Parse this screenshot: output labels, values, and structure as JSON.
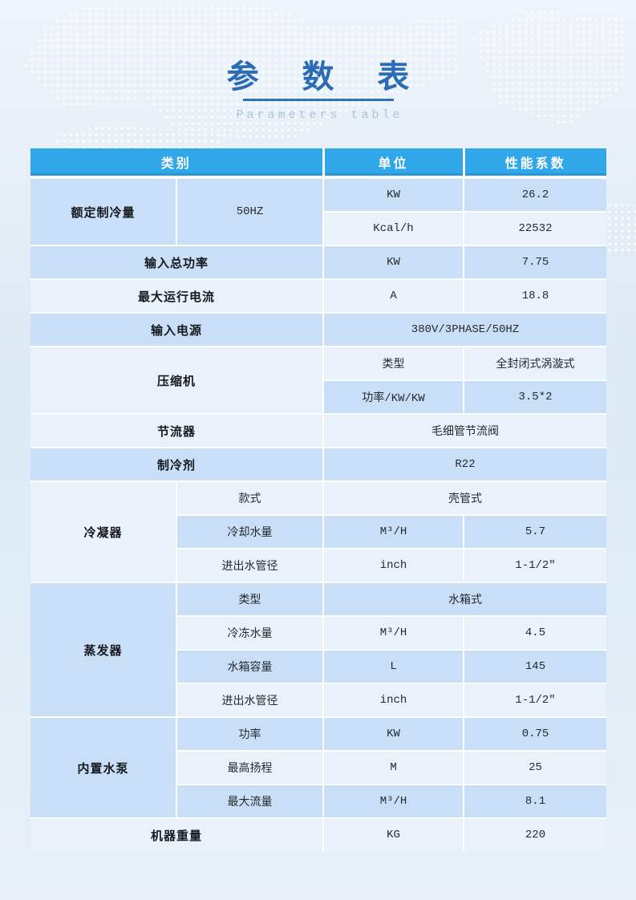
{
  "page": {
    "title": "参 数 表",
    "subtitle": "Parameters table"
  },
  "colors": {
    "title_color": "#2b6cb4",
    "title_underline": "#2d73b8",
    "subtitle_color": "#a9c3dd",
    "header_bg": "#2fa7e8",
    "header_text": "#ffffff",
    "row_medium": "#c9dff7",
    "row_light": "#e9f1fb"
  },
  "table": {
    "header": [
      {
        "label": "类别",
        "span": 2
      },
      {
        "label": "单位",
        "span": 1
      },
      {
        "label": "性能系数",
        "span": 1
      }
    ],
    "rows": [
      {
        "shade": "m",
        "cells": [
          {
            "text": "额定制冷量",
            "type": "row-label",
            "bold": true,
            "rowspan": 2
          },
          {
            "text": "50HZ",
            "type": "sub-label",
            "rowspan": 2
          },
          {
            "text": "KW",
            "type": "unit-cell"
          },
          {
            "text": "26.2",
            "type": "value-cell"
          }
        ]
      },
      {
        "shade": "l",
        "cells": [
          {
            "text": "Kcal/h",
            "type": "unit-cell"
          },
          {
            "text": "22532",
            "type": "value-cell"
          }
        ]
      },
      {
        "shade": "m",
        "cells": [
          {
            "text": "输入总功率",
            "type": "row-label",
            "bold": true,
            "colspan": 2
          },
          {
            "text": "KW",
            "type": "unit-cell"
          },
          {
            "text": "7.75",
            "type": "value-cell"
          }
        ]
      },
      {
        "shade": "l",
        "cells": [
          {
            "text": "最大运行电流",
            "type": "row-label",
            "bold": true,
            "colspan": 2
          },
          {
            "text": "A",
            "type": "unit-cell"
          },
          {
            "text": "18.8",
            "type": "value-cell"
          }
        ]
      },
      {
        "shade": "m",
        "cells": [
          {
            "text": "输入电源",
            "type": "row-label",
            "bold": true,
            "colspan": 2
          },
          {
            "text": "380V/3PHASE/50HZ",
            "type": "value-cell",
            "colspan": 2
          }
        ]
      },
      {
        "shade": "l",
        "cells": [
          {
            "text": "压缩机",
            "type": "row-label",
            "bold": true,
            "colspan": 2,
            "rowspan": 2
          },
          {
            "text": "类型",
            "type": "sub-label"
          },
          {
            "text": "全封闭式涡漩式",
            "type": "value-cell"
          }
        ]
      },
      {
        "shade": "m",
        "cells": [
          {
            "text": "功率/KW/KW",
            "type": "sub-label"
          },
          {
            "text": "3.5*2",
            "type": "value-cell"
          }
        ]
      },
      {
        "shade": "l",
        "cells": [
          {
            "text": "节流器",
            "type": "row-label",
            "bold": true,
            "colspan": 2
          },
          {
            "text": "毛细管节流阀",
            "type": "value-cell",
            "colspan": 2
          }
        ]
      },
      {
        "shade": "m",
        "cells": [
          {
            "text": "制冷剂",
            "type": "row-label",
            "bold": true,
            "colspan": 2
          },
          {
            "text": "R22",
            "type": "value-cell",
            "colspan": 2
          }
        ]
      },
      {
        "shade": "l",
        "cells": [
          {
            "text": "冷凝器",
            "type": "row-label",
            "bold": true,
            "rowspan": 3
          },
          {
            "text": "款式",
            "type": "sub-label"
          },
          {
            "text": "壳管式",
            "type": "value-cell",
            "colspan": 2
          }
        ]
      },
      {
        "shade": "m",
        "cells": [
          {
            "text": "冷却水量",
            "type": "sub-label"
          },
          {
            "text": "M³/H",
            "type": "unit-cell"
          },
          {
            "text": "5.7",
            "type": "value-cell"
          }
        ]
      },
      {
        "shade": "l",
        "cells": [
          {
            "text": "进出水管径",
            "type": "sub-label"
          },
          {
            "text": "inch",
            "type": "unit-cell"
          },
          {
            "text": "1-1/2″",
            "type": "value-cell"
          }
        ]
      },
      {
        "shade": "m",
        "cells": [
          {
            "text": "蒸发器",
            "type": "row-label",
            "bold": true,
            "rowspan": 4
          },
          {
            "text": "类型",
            "type": "sub-label"
          },
          {
            "text": "水箱式",
            "type": "value-cell",
            "colspan": 2
          }
        ]
      },
      {
        "shade": "l",
        "cells": [
          {
            "text": "冷冻水量",
            "type": "sub-label"
          },
          {
            "text": "M³/H",
            "type": "unit-cell"
          },
          {
            "text": "4.5",
            "type": "value-cell"
          }
        ]
      },
      {
        "shade": "m",
        "cells": [
          {
            "text": "水箱容量",
            "type": "sub-label"
          },
          {
            "text": "L",
            "type": "unit-cell"
          },
          {
            "text": "145",
            "type": "value-cell"
          }
        ]
      },
      {
        "shade": "l",
        "cells": [
          {
            "text": "进出水管径",
            "type": "sub-label"
          },
          {
            "text": "inch",
            "type": "unit-cell"
          },
          {
            "text": "1-1/2″",
            "type": "value-cell"
          }
        ]
      },
      {
        "shade": "m",
        "cells": [
          {
            "text": "内置水泵",
            "type": "row-label",
            "bold": true,
            "rowspan": 3
          },
          {
            "text": "功率",
            "type": "sub-label"
          },
          {
            "text": "KW",
            "type": "unit-cell"
          },
          {
            "text": "0.75",
            "type": "value-cell"
          }
        ]
      },
      {
        "shade": "l",
        "cells": [
          {
            "text": "最高扬程",
            "type": "sub-label"
          },
          {
            "text": "M",
            "type": "unit-cell"
          },
          {
            "text": "25",
            "type": "value-cell"
          }
        ]
      },
      {
        "shade": "m",
        "cells": [
          {
            "text": "最大流量",
            "type": "sub-label"
          },
          {
            "text": "M³/H",
            "type": "unit-cell"
          },
          {
            "text": "8.1",
            "type": "value-cell"
          }
        ]
      },
      {
        "shade": "l",
        "cells": [
          {
            "text": "机器重量",
            "type": "row-label",
            "bold": true,
            "colspan": 2
          },
          {
            "text": "KG",
            "type": "unit-cell"
          },
          {
            "text": "220",
            "type": "value-cell"
          }
        ]
      }
    ]
  }
}
